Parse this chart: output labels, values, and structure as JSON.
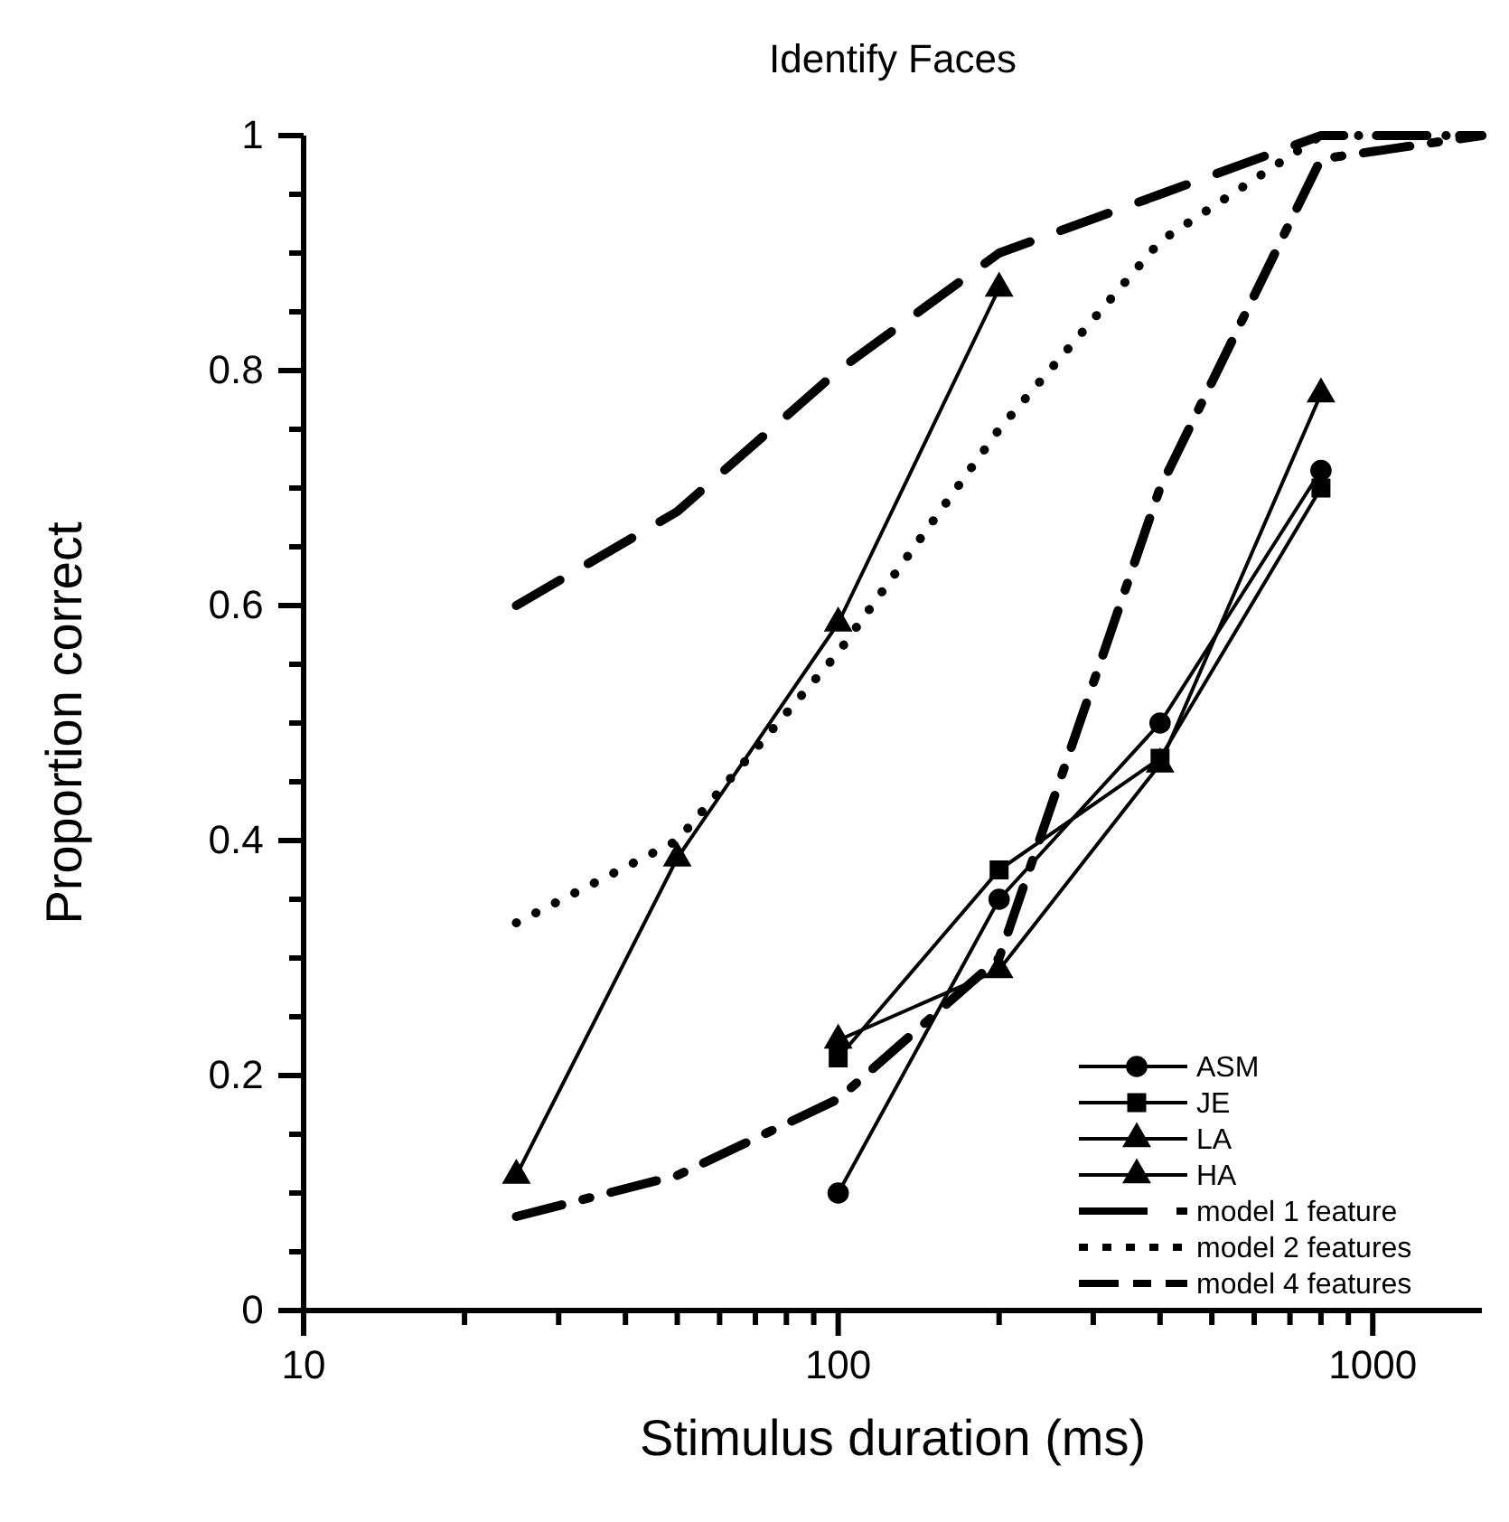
{
  "chart_data": {
    "type": "line",
    "title": "Identify Faces",
    "xlabel": "Stimulus duration (ms)",
    "ylabel": "Proportion correct",
    "log": "x",
    "xlim": [
      10,
      1600
    ],
    "xticks": [
      10,
      {
        "value": 20,
        "label": null
      },
      {
        "value": 30,
        "label": null
      },
      {
        "value": 40,
        "label": null
      },
      {
        "value": 50,
        "label": null
      },
      {
        "value": 60,
        "label": null
      },
      {
        "value": 70,
        "label": null
      },
      {
        "value": 80,
        "label": null
      },
      {
        "value": 90,
        "label": null
      },
      100,
      {
        "value": 200,
        "label": null
      },
      {
        "value": 300,
        "label": null
      },
      {
        "value": 400,
        "label": null
      },
      {
        "value": 500,
        "label": null
      },
      {
        "value": 600,
        "label": null
      },
      {
        "value": 700,
        "label": null
      },
      {
        "value": 800,
        "label": null
      },
      {
        "value": 900,
        "label": null
      },
      1000
    ],
    "ylim": [
      0,
      1
    ],
    "yticks": [
      0,
      {
        "value": 0.05,
        "label": null
      },
      {
        "value": 0.1,
        "label": null
      },
      {
        "value": 0.15,
        "label": null
      },
      0.2,
      {
        "value": 0.25,
        "label": null
      },
      {
        "value": 0.3,
        "label": null
      },
      {
        "value": 0.35,
        "label": null
      },
      0.4,
      {
        "value": 0.45,
        "label": null
      },
      {
        "value": 0.5,
        "label": null
      },
      {
        "value": 0.55,
        "label": null
      },
      0.6,
      {
        "value": 0.65,
        "label": null
      },
      {
        "value": 0.7,
        "label": null
      },
      {
        "value": 0.75,
        "label": null
      },
      0.8,
      {
        "value": 0.85,
        "label": null
      },
      {
        "value": 0.9,
        "label": null
      },
      {
        "value": 0.95,
        "label": null
      },
      1
    ],
    "grid": false,
    "legend": "bottom right",
    "series": [
      {
        "name": "ASM",
        "color": "#000000",
        "marker": "circle",
        "line_style": "solid",
        "x": [
          100,
          200,
          400,
          800
        ],
        "values": [
          0.1,
          0.35,
          0.5,
          0.715
        ]
      },
      {
        "name": "JE",
        "color": "#000000",
        "marker": "square",
        "line_style": "solid",
        "x": [
          100,
          200,
          400,
          800
        ],
        "values": [
          0.215,
          0.375,
          0.47,
          0.7
        ]
      },
      {
        "name": "LA",
        "color": "#000000",
        "marker": "triangle",
        "line_style": "solid",
        "x": [
          100,
          200,
          400,
          800
        ],
        "values": [
          0.23,
          0.29,
          0.465,
          0.78
        ]
      },
      {
        "name": "HA",
        "color": "#000000",
        "marker": "triangle",
        "line_style": "solid",
        "x": [
          25,
          50,
          100,
          200
        ],
        "values": [
          0.115,
          0.385,
          0.585,
          0.87
        ]
      },
      {
        "name": "model 1 feature",
        "color": "#000000",
        "marker": "none",
        "line_style": "dashed",
        "x": [
          25,
          50,
          100,
          200,
          400,
          800,
          1600
        ],
        "values": [
          0.6,
          0.68,
          0.8,
          0.9,
          0.95,
          1.0,
          1.0
        ]
      },
      {
        "name": "model 2 features",
        "color": "#000000",
        "marker": "none",
        "line_style": "dotted",
        "x": [
          25,
          50,
          100,
          200,
          400,
          800,
          1600
        ],
        "values": [
          0.33,
          0.4,
          0.56,
          0.75,
          0.91,
          1.0,
          1.0
        ]
      },
      {
        "name": "model 4 features",
        "color": "#000000",
        "marker": "none",
        "line_style": "dashdot",
        "x": [
          25,
          50,
          100,
          200,
          400,
          800,
          1600
        ],
        "values": [
          0.08,
          0.115,
          0.18,
          0.3,
          0.7,
          0.98,
          1.0
        ]
      }
    ]
  }
}
